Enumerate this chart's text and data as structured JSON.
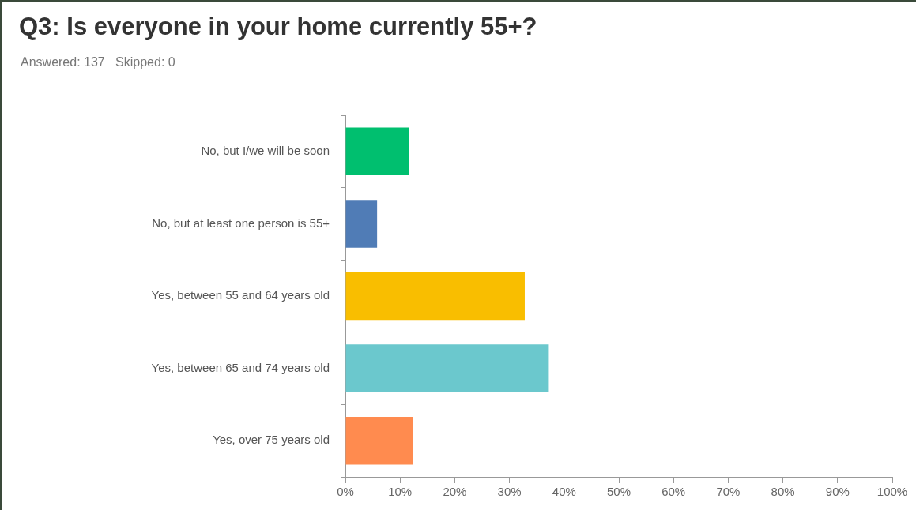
{
  "chart_data": {
    "type": "bar",
    "orientation": "horizontal",
    "title": "Q3: Is everyone in your home currently 55+?",
    "subtitle": "Answered: 137   Skipped: 0",
    "categories": [
      "No, but I/we will be soon",
      "No, but at least one person is 55+",
      "Yes, between 55 and 64 years old",
      "Yes, between 65 and 74 years old",
      "Yes, over 75 years old"
    ],
    "values": [
      11.7,
      5.8,
      32.8,
      37.2,
      12.4
    ],
    "colors": [
      "#00bf6f",
      "#507cb6",
      "#f9be00",
      "#6bc8cd",
      "#ff8b4f"
    ],
    "xlim": [
      0,
      100
    ],
    "xticks": [
      {
        "value": 0,
        "label": "0%"
      },
      {
        "value": 10,
        "label": "10%"
      },
      {
        "value": 20,
        "label": "20%"
      },
      {
        "value": 30,
        "label": "30%"
      },
      {
        "value": 40,
        "label": "40%"
      },
      {
        "value": 50,
        "label": "50%"
      },
      {
        "value": 60,
        "label": "60%"
      },
      {
        "value": 70,
        "label": "70%"
      },
      {
        "value": 80,
        "label": "80%"
      },
      {
        "value": 90,
        "label": "90%"
      },
      {
        "value": 100,
        "label": "100%"
      }
    ],
    "grid": false,
    "legend": false
  }
}
